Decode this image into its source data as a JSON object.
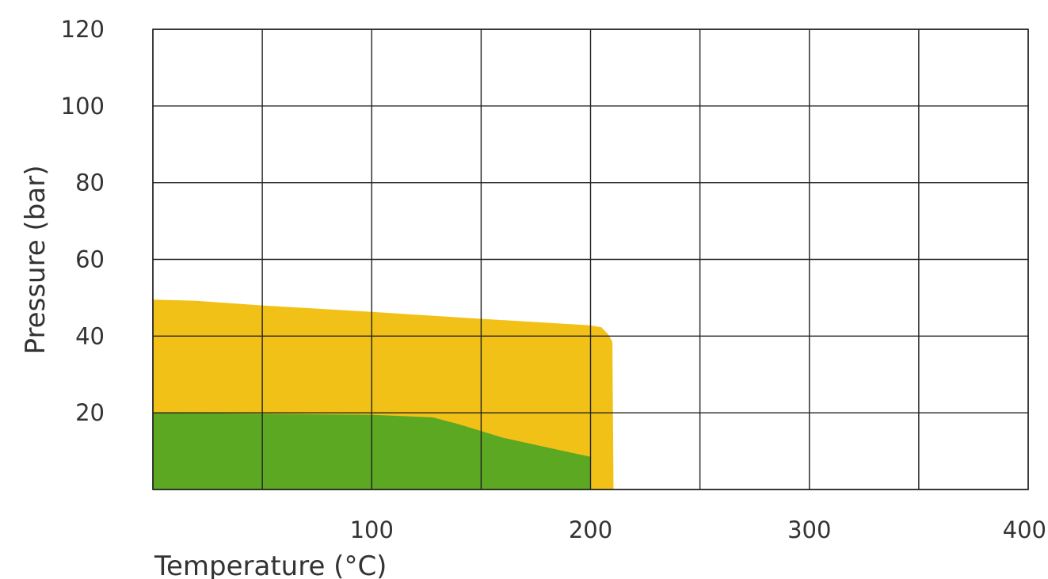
{
  "chart_data": {
    "type": "area",
    "xlabel": "Temperature (°C)",
    "ylabel": "Pressure (bar)",
    "xlim": [
      0,
      400
    ],
    "ylim": [
      0,
      120
    ],
    "x_ticks": [
      100,
      200,
      300,
      400
    ],
    "y_ticks": [
      20,
      40,
      60,
      80,
      100,
      120
    ],
    "x_grid": [
      0,
      50,
      100,
      150,
      200,
      250,
      300,
      350,
      400
    ],
    "y_grid": [
      0,
      20,
      40,
      60,
      80,
      100,
      120
    ],
    "grid": true,
    "series": [
      {
        "color": "#f2c118",
        "points": [
          [
            0,
            49.5
          ],
          [
            20,
            49.2
          ],
          [
            50,
            48
          ],
          [
            100,
            46.3
          ],
          [
            150,
            44.5
          ],
          [
            200,
            42.8
          ],
          [
            205,
            42.3
          ],
          [
            208,
            40.5
          ],
          [
            210,
            38.5
          ],
          [
            210.5,
            0
          ],
          [
            0,
            0
          ]
        ]
      },
      {
        "color": "#5ca823",
        "points": [
          [
            0,
            20
          ],
          [
            100,
            19.5
          ],
          [
            128,
            18.8
          ],
          [
            140,
            17
          ],
          [
            160,
            13.5
          ],
          [
            180,
            11
          ],
          [
            200,
            8.5
          ],
          [
            200,
            0
          ],
          [
            0,
            0
          ]
        ]
      }
    ]
  }
}
